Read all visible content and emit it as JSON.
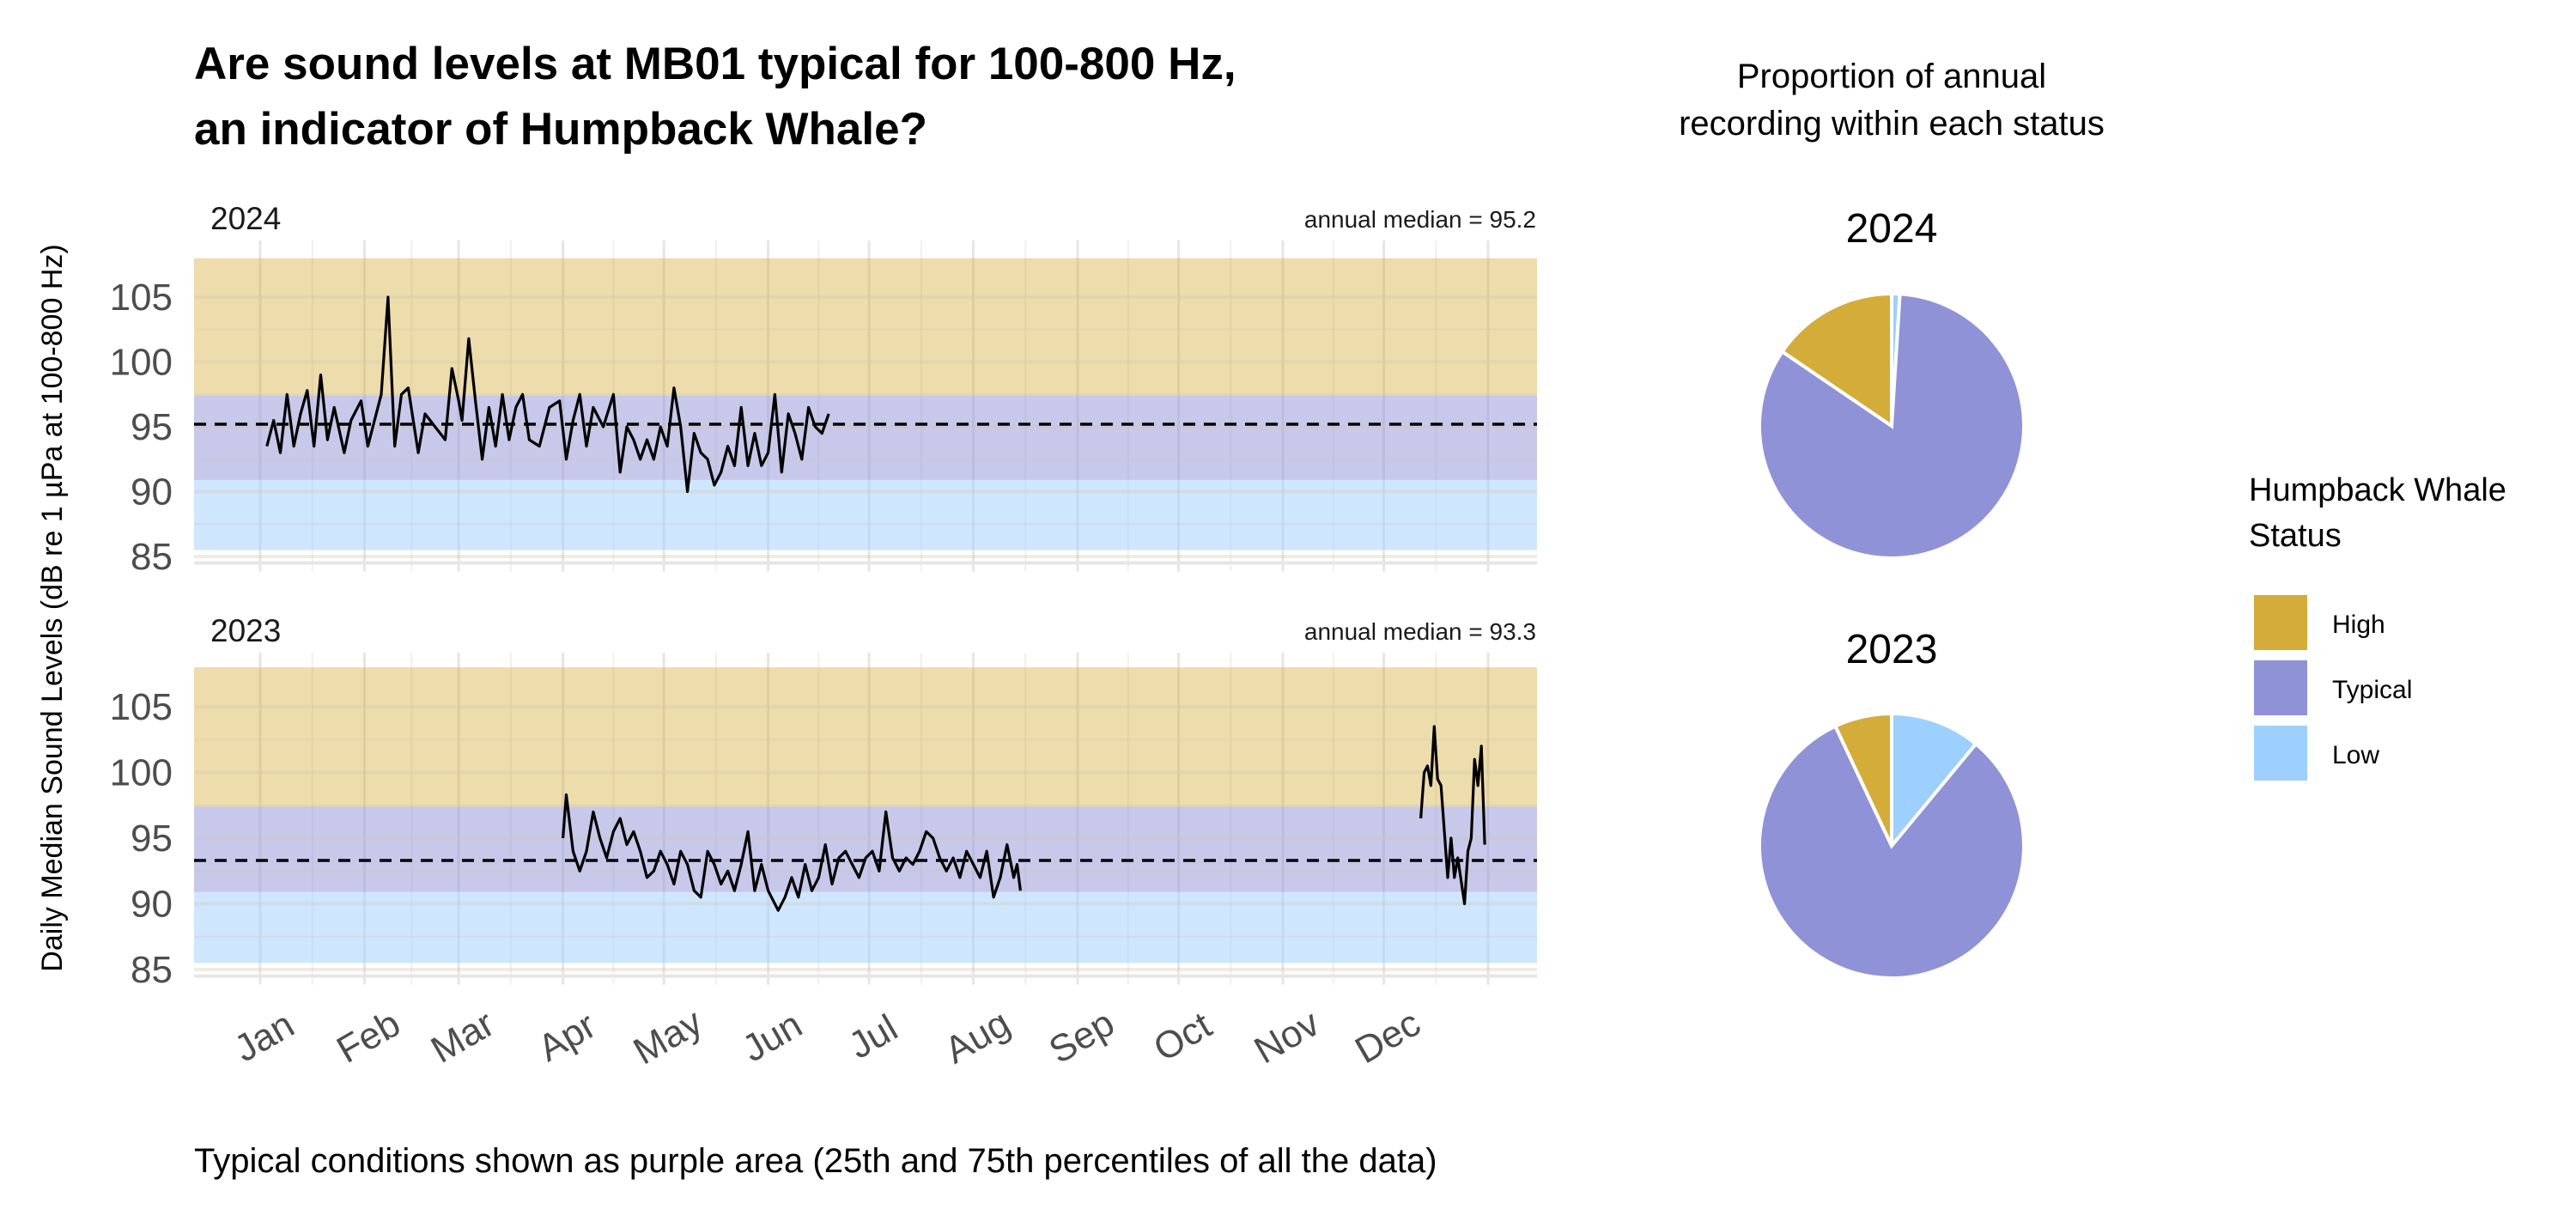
{
  "title_lines": [
    "Are sound levels at MB01 typical for 100-800 Hz,",
    "an indicator of Humpback Whale?"
  ],
  "caption": "Typical conditions shown as purple area (25th and 75th percentiles of all the data)",
  "pie_header_lines": [
    "Proportion of annual",
    "recording within each status"
  ],
  "colors": {
    "High": "#D4AC3A",
    "Typical": "#8F92D6",
    "Low": "#9DCFFF",
    "line": "#000000"
  },
  "legend": {
    "title_lines": [
      "Humpback Whale",
      "Status"
    ],
    "items": [
      "High",
      "Typical",
      "Low"
    ]
  },
  "chart_data": [
    {
      "type": "line",
      "ylabel": "Daily Median Sound Levels (dB re 1 µPa at 100-800 Hz)",
      "ylim": [
        85,
        108
      ],
      "yticks": [
        "85",
        "90",
        "95",
        "100",
        "105"
      ],
      "xticks": [
        "Jan",
        "Feb",
        "Mar",
        "Apr",
        "May",
        "Jun",
        "Jul",
        "Aug",
        "Sep",
        "Oct",
        "Nov",
        "Dec"
      ],
      "grid": true,
      "bands": {
        "High": [
          97.4,
          108
        ],
        "Typical": [
          90.9,
          97.4
        ],
        "Low": [
          85.5,
          90.9
        ]
      },
      "panels": [
        {
          "year": "2024",
          "annual_median_label": "annual median = 95.2",
          "annual_median": 95.2,
          "series": [
            [
              "01-03",
              93.5
            ],
            [
              "01-05",
              95.5
            ],
            [
              "01-07",
              93
            ],
            [
              "01-09",
              97.5
            ],
            [
              "01-11",
              93.5
            ],
            [
              "01-13",
              96
            ],
            [
              "01-15",
              97.8
            ],
            [
              "01-17",
              93.5
            ],
            [
              "01-19",
              99
            ],
            [
              "01-21",
              94
            ],
            [
              "01-23",
              96.5
            ],
            [
              "01-26",
              93
            ],
            [
              "01-28",
              95.5
            ],
            [
              "01-31",
              97
            ],
            [
              "02-02",
              93.5
            ],
            [
              "02-06",
              97.5
            ],
            [
              "02-08",
              105
            ],
            [
              "02-10",
              93.5
            ],
            [
              "02-12",
              97.5
            ],
            [
              "02-14",
              98
            ],
            [
              "02-17",
              93
            ],
            [
              "02-19",
              96
            ],
            [
              "02-22",
              95
            ],
            [
              "02-25",
              94
            ],
            [
              "02-27",
              99.5
            ],
            [
              "02-29",
              97
            ],
            [
              "03-02",
              95.5
            ],
            [
              "03-04",
              101.8
            ],
            [
              "03-06",
              97
            ],
            [
              "03-08",
              92.5
            ],
            [
              "03-10",
              96.5
            ],
            [
              "03-12",
              93.5
            ],
            [
              "03-14",
              97.5
            ],
            [
              "03-16",
              94
            ],
            [
              "03-18",
              96.5
            ],
            [
              "03-20",
              97.5
            ],
            [
              "03-22",
              94
            ],
            [
              "03-25",
              93.5
            ],
            [
              "03-28",
              96.5
            ],
            [
              "03-31",
              97
            ],
            [
              "04-02",
              92.5
            ],
            [
              "04-04",
              95.5
            ],
            [
              "04-06",
              97.5
            ],
            [
              "04-08",
              93.5
            ],
            [
              "04-10",
              96.5
            ],
            [
              "04-13",
              95
            ],
            [
              "04-16",
              97.5
            ],
            [
              "04-18",
              91.5
            ],
            [
              "04-20",
              95
            ],
            [
              "04-22",
              94
            ],
            [
              "04-24",
              92.5
            ],
            [
              "04-26",
              94
            ],
            [
              "04-28",
              92.5
            ],
            [
              "04-30",
              95
            ],
            [
              "05-02",
              93.5
            ],
            [
              "05-04",
              98
            ],
            [
              "05-06",
              95
            ],
            [
              "05-08",
              90
            ],
            [
              "05-10",
              94.5
            ],
            [
              "05-12",
              93
            ],
            [
              "05-14",
              92.5
            ],
            [
              "05-16",
              90.5
            ],
            [
              "05-18",
              91.5
            ],
            [
              "05-20",
              93.5
            ],
            [
              "05-22",
              92
            ],
            [
              "05-24",
              96.5
            ],
            [
              "05-26",
              92
            ],
            [
              "05-28",
              94.5
            ],
            [
              "05-30",
              92
            ],
            [
              "06-01",
              93
            ],
            [
              "06-03",
              97.5
            ],
            [
              "06-05",
              91.5
            ],
            [
              "06-07",
              96
            ],
            [
              "06-09",
              94.5
            ],
            [
              "06-11",
              92.5
            ],
            [
              "06-13",
              96.5
            ],
            [
              "06-15",
              95
            ],
            [
              "06-17",
              94.5
            ],
            [
              "06-19",
              96
            ]
          ],
          "pie": {
            "High": 15.5,
            "Typical": 83.5,
            "Low": 1.0
          }
        },
        {
          "year": "2023",
          "annual_median_label": "annual median = 93.3",
          "annual_median": 93.3,
          "series": [
            [
              "04-01",
              95
            ],
            [
              "04-02",
              98.3
            ],
            [
              "04-04",
              94
            ],
            [
              "04-06",
              92.5
            ],
            [
              "04-08",
              94
            ],
            [
              "04-10",
              97
            ],
            [
              "04-12",
              95
            ],
            [
              "04-14",
              93.5
            ],
            [
              "04-16",
              95.5
            ],
            [
              "04-18",
              96.5
            ],
            [
              "04-20",
              94.5
            ],
            [
              "04-22",
              95.5
            ],
            [
              "04-24",
              94
            ],
            [
              "04-26",
              92
            ],
            [
              "04-28",
              92.5
            ],
            [
              "04-30",
              94
            ],
            [
              "05-02",
              93
            ],
            [
              "05-04",
              91.5
            ],
            [
              "05-06",
              94
            ],
            [
              "05-08",
              93
            ],
            [
              "05-10",
              91
            ],
            [
              "05-12",
              90.5
            ],
            [
              "05-14",
              94
            ],
            [
              "05-16",
              93
            ],
            [
              "05-18",
              91.5
            ],
            [
              "05-20",
              92.5
            ],
            [
              "05-22",
              91
            ],
            [
              "05-24",
              93
            ],
            [
              "05-26",
              95.5
            ],
            [
              "05-28",
              91
            ],
            [
              "05-30",
              93
            ],
            [
              "06-01",
              91
            ],
            [
              "06-04",
              89.5
            ],
            [
              "06-06",
              90.5
            ],
            [
              "06-08",
              92
            ],
            [
              "06-10",
              90.5
            ],
            [
              "06-12",
              93
            ],
            [
              "06-14",
              91
            ],
            [
              "06-16",
              92
            ],
            [
              "06-18",
              94.5
            ],
            [
              "06-20",
              91.5
            ],
            [
              "06-22",
              93.5
            ],
            [
              "06-24",
              94
            ],
            [
              "06-26",
              93
            ],
            [
              "06-28",
              92
            ],
            [
              "06-30",
              93.5
            ],
            [
              "07-02",
              94
            ],
            [
              "07-04",
              92.5
            ],
            [
              "07-06",
              97
            ],
            [
              "07-08",
              93.5
            ],
            [
              "07-10",
              92.5
            ],
            [
              "07-12",
              93.5
            ],
            [
              "07-14",
              93
            ],
            [
              "07-16",
              94
            ],
            [
              "07-18",
              95.5
            ],
            [
              "07-20",
              95
            ],
            [
              "07-22",
              93.5
            ],
            [
              "07-24",
              92.5
            ],
            [
              "07-26",
              93.5
            ],
            [
              "07-28",
              92
            ],
            [
              "07-30",
              94
            ],
            [
              "08-01",
              93
            ],
            [
              "08-03",
              92
            ],
            [
              "08-05",
              94
            ],
            [
              "08-07",
              90.5
            ],
            [
              "08-09",
              92
            ],
            [
              "08-11",
              94.5
            ],
            [
              "08-13",
              92
            ],
            [
              "08-14",
              93
            ],
            [
              "08-15",
              91
            ]
          ],
          "series_b": [
            [
              "12-12",
              96.5
            ],
            [
              "12-13",
              100
            ],
            [
              "12-14",
              100.5
            ],
            [
              "12-15",
              99
            ],
            [
              "12-16",
              103.5
            ],
            [
              "12-17",
              99.5
            ],
            [
              "12-18",
              99
            ],
            [
              "12-20",
              92
            ],
            [
              "12-21",
              95
            ],
            [
              "12-22",
              92
            ],
            [
              "12-23",
              93.5
            ],
            [
              "12-25",
              90
            ],
            [
              "12-26",
              94
            ],
            [
              "12-27",
              95
            ],
            [
              "12-28",
              101
            ],
            [
              "12-29",
              99
            ],
            [
              "12-30",
              102
            ],
            [
              "12-31",
              94.5
            ]
          ],
          "pie": {
            "High": 7.0,
            "Typical": 82.0,
            "Low": 11.0
          }
        }
      ]
    }
  ]
}
